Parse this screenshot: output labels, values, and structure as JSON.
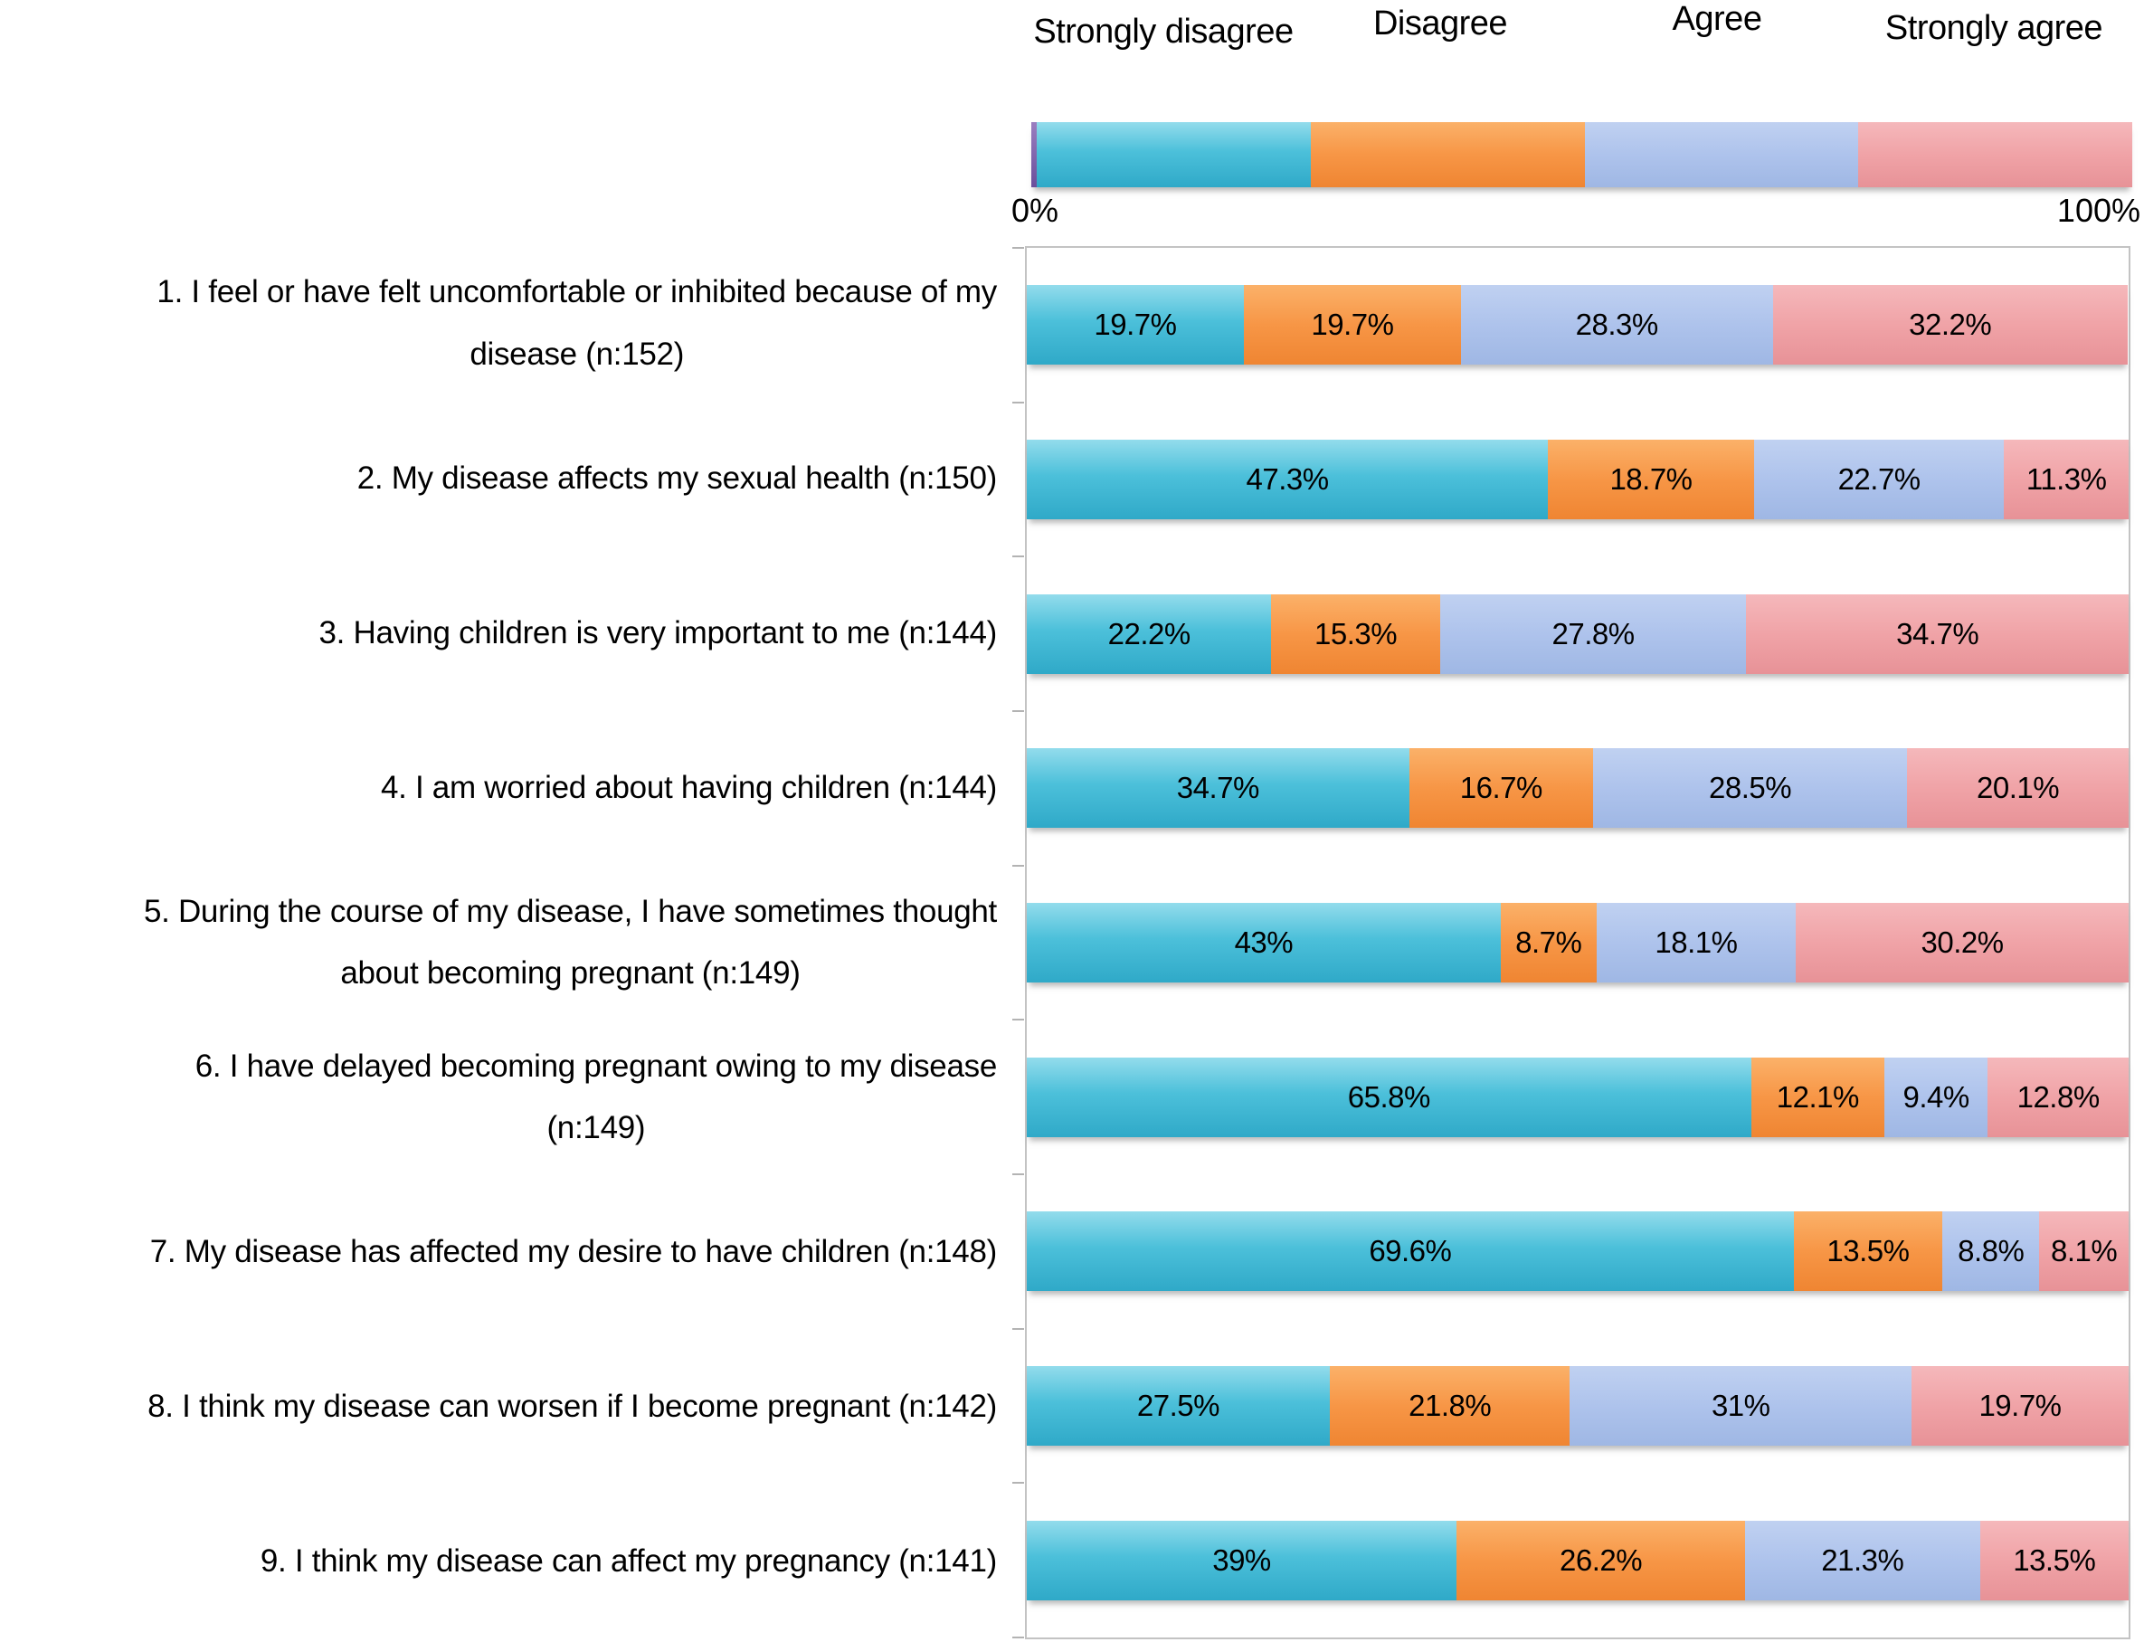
{
  "legend": {
    "items": [
      {
        "label": "Strongly disagree",
        "color": "#4cc0da"
      },
      {
        "label": "Disagree",
        "color": "#f79646"
      },
      {
        "label": "Agree",
        "color": "#aec3ec"
      },
      {
        "label": "Strongly agree",
        "color": "#f0a3a7"
      }
    ],
    "left_edge_color": "#7b5ba5",
    "axis_min_label": "0%",
    "axis_max_label": "100%"
  },
  "chart_data": {
    "type": "bar",
    "orientation": "horizontal-stacked",
    "xlim": [
      0,
      100
    ],
    "stack_total_percent": 100,
    "categories": [
      "Strongly disagree",
      "Disagree",
      "Agree",
      "Strongly agree"
    ],
    "rows": [
      {
        "label": "1. I feel or have felt uncomfortable or inhibited because of my\ndisease (n:152)",
        "n": 152,
        "values": [
          19.7,
          19.7,
          28.3,
          32.2
        ],
        "display": [
          "19.7%",
          "19.7%",
          "28.3%",
          "32.2%"
        ]
      },
      {
        "label": "2. My disease affects my sexual health (n:150)",
        "n": 150,
        "values": [
          47.3,
          18.7,
          22.7,
          11.3
        ],
        "display": [
          "47.3%",
          "18.7%",
          "22.7%",
          "11.3%"
        ]
      },
      {
        "label": "3. Having children is very important to me (n:144)",
        "n": 144,
        "values": [
          22.2,
          15.3,
          27.8,
          34.7
        ],
        "display": [
          "22.2%",
          "15.3%",
          "27.8%",
          "34.7%"
        ]
      },
      {
        "label": "4. I am worried about having children (n:144)",
        "n": 144,
        "values": [
          34.7,
          16.7,
          28.5,
          20.1
        ],
        "display": [
          "34.7%",
          "16.7%",
          "28.5%",
          "20.1%"
        ]
      },
      {
        "label": "5. During the course of my disease, I have sometimes thought\nabout becoming pregnant (n:149)",
        "n": 149,
        "values": [
          43,
          8.7,
          18.1,
          30.2
        ],
        "display": [
          "43%",
          "8.7%",
          "18.1%",
          "30.2%"
        ]
      },
      {
        "label": "6. I have delayed becoming pregnant owing to my disease\n(n:149)",
        "n": 149,
        "values": [
          65.8,
          12.1,
          9.4,
          12.8
        ],
        "display": [
          "65.8%",
          "12.1%",
          "9.4%",
          "12.8%"
        ]
      },
      {
        "label": "7. My disease has affected my desire to have children (n:148)",
        "n": 148,
        "values": [
          69.6,
          13.5,
          8.8,
          8.1
        ],
        "display": [
          "69.6%",
          "13.5%",
          "8.8%",
          "8.1%"
        ]
      },
      {
        "label": "8. I think my disease can worsen if I become pregnant (n:142)",
        "n": 142,
        "values": [
          27.5,
          21.8,
          31,
          19.7
        ],
        "display": [
          "27.5%",
          "21.8%",
          "31%",
          "19.7%"
        ]
      },
      {
        "label": "9. I think my disease can affect my pregnancy (n:141)",
        "n": 141,
        "values": [
          39,
          26.2,
          21.3,
          13.5
        ],
        "display": [
          "39%",
          "26.2%",
          "21.3%",
          "13.5%"
        ]
      }
    ]
  }
}
